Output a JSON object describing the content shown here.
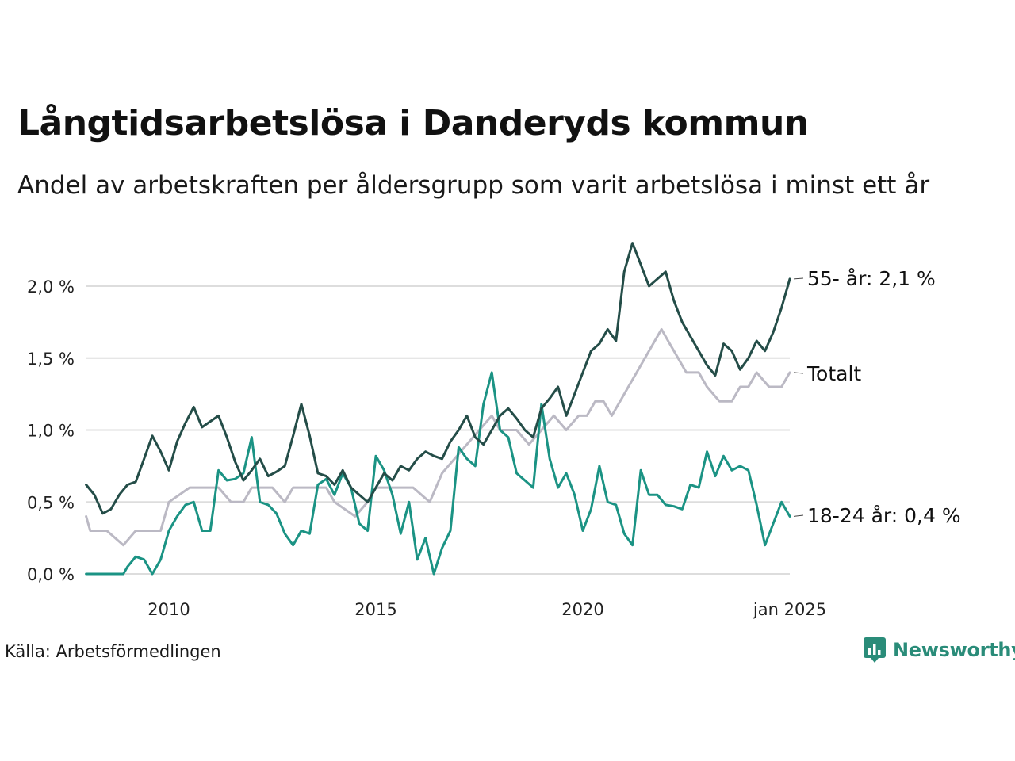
{
  "title": "Långtidsarbetslösa i Danderyds kommun",
  "subtitle": "Andel av arbetskraften per åldersgrupp som varit arbetslösa i minst ett år",
  "source": "Källa: Arbetsförmedlingen",
  "brand": "Newsworthy",
  "colors": {
    "age55": "#244d48",
    "total": "#bbb9c4",
    "age18_24": "#1b9384",
    "grid": "#dddddd",
    "brand": "#2a8c79"
  },
  "chart_data": {
    "type": "line",
    "x_axis": {
      "range": [
        2008,
        2025
      ],
      "ticks": [
        2010,
        2015,
        2020,
        2025
      ],
      "tick_labels": [
        "2010",
        "2015",
        "2020",
        "jan 2025"
      ]
    },
    "y_axis": {
      "range": [
        0,
        2.35
      ],
      "ticks": [
        0,
        0.5,
        1.0,
        1.5,
        2.0
      ],
      "tick_labels": [
        "0,0 %",
        "0,5 %",
        "1,0 %",
        "1,5 %",
        "2,0 %"
      ]
    },
    "grid": true,
    "series": [
      {
        "key": "total",
        "name": "Totalt",
        "end_label": "Totalt",
        "x": [
          2008.0,
          2008.1,
          2008.5,
          2008.9,
          2009.2,
          2009.5,
          2009.8,
          2010.0,
          2010.5,
          2010.8,
          2011.0,
          2011.2,
          2011.5,
          2011.8,
          2012.0,
          2012.5,
          2012.8,
          2013.0,
          2013.5,
          2013.8,
          2014.0,
          2014.5,
          2014.8,
          2015.0,
          2015.3,
          2015.6,
          2015.9,
          2016.3,
          2016.6,
          2016.9,
          2017.2,
          2017.5,
          2017.8,
          2018.0,
          2018.4,
          2018.7,
          2019.0,
          2019.3,
          2019.6,
          2019.9,
          2020.1,
          2020.3,
          2020.5,
          2020.7,
          2020.9,
          2021.1,
          2021.3,
          2021.5,
          2021.7,
          2021.9,
          2022.1,
          2022.3,
          2022.5,
          2022.8,
          2023.0,
          2023.3,
          2023.6,
          2023.8,
          2024.0,
          2024.2,
          2024.5,
          2024.8,
          2025.0
        ],
        "y": [
          0.4,
          0.3,
          0.3,
          0.2,
          0.3,
          0.3,
          0.3,
          0.5,
          0.6,
          0.6,
          0.6,
          0.6,
          0.5,
          0.5,
          0.6,
          0.6,
          0.5,
          0.6,
          0.6,
          0.6,
          0.5,
          0.4,
          0.5,
          0.6,
          0.6,
          0.6,
          0.6,
          0.5,
          0.7,
          0.8,
          0.9,
          1.0,
          1.1,
          1.0,
          1.0,
          0.9,
          1.0,
          1.1,
          1.0,
          1.1,
          1.1,
          1.2,
          1.2,
          1.1,
          1.2,
          1.3,
          1.4,
          1.5,
          1.6,
          1.7,
          1.6,
          1.5,
          1.4,
          1.4,
          1.3,
          1.2,
          1.2,
          1.3,
          1.3,
          1.4,
          1.3,
          1.3,
          1.4
        ]
      },
      {
        "key": "age55",
        "name": "55- år",
        "end_label": "55- år: 2,1 %",
        "x": [
          2008.0,
          2008.2,
          2008.4,
          2008.6,
          2008.8,
          2009.0,
          2009.2,
          2009.4,
          2009.6,
          2009.8,
          2010.0,
          2010.2,
          2010.4,
          2010.6,
          2010.8,
          2011.0,
          2011.2,
          2011.4,
          2011.6,
          2011.8,
          2012.0,
          2012.2,
          2012.4,
          2012.6,
          2012.8,
          2013.0,
          2013.2,
          2013.4,
          2013.6,
          2013.8,
          2014.0,
          2014.2,
          2014.4,
          2014.6,
          2014.8,
          2015.0,
          2015.2,
          2015.4,
          2015.6,
          2015.8,
          2016.0,
          2016.2,
          2016.4,
          2016.6,
          2016.8,
          2017.0,
          2017.2,
          2017.4,
          2017.6,
          2017.8,
          2018.0,
          2018.2,
          2018.4,
          2018.6,
          2018.8,
          2019.0,
          2019.2,
          2019.4,
          2019.6,
          2019.8,
          2020.0,
          2020.2,
          2020.4,
          2020.6,
          2020.8,
          2021.0,
          2021.2,
          2021.4,
          2021.6,
          2021.8,
          2022.0,
          2022.2,
          2022.4,
          2022.6,
          2022.8,
          2023.0,
          2023.2,
          2023.4,
          2023.6,
          2023.8,
          2024.0,
          2024.2,
          2024.4,
          2024.6,
          2024.8,
          2025.0
        ],
        "y": [
          0.62,
          0.55,
          0.42,
          0.45,
          0.55,
          0.62,
          0.64,
          0.8,
          0.96,
          0.85,
          0.72,
          0.92,
          1.05,
          1.16,
          1.02,
          1.06,
          1.1,
          0.95,
          0.78,
          0.65,
          0.72,
          0.8,
          0.68,
          0.71,
          0.75,
          0.96,
          1.18,
          0.96,
          0.7,
          0.68,
          0.62,
          0.72,
          0.6,
          0.55,
          0.5,
          0.6,
          0.7,
          0.65,
          0.75,
          0.72,
          0.8,
          0.85,
          0.82,
          0.8,
          0.92,
          1.0,
          1.1,
          0.95,
          0.9,
          1.0,
          1.1,
          1.15,
          1.08,
          1.0,
          0.95,
          1.15,
          1.22,
          1.3,
          1.1,
          1.25,
          1.4,
          1.55,
          1.6,
          1.7,
          1.62,
          2.1,
          2.3,
          2.15,
          2.0,
          2.05,
          2.1,
          1.9,
          1.75,
          1.65,
          1.55,
          1.45,
          1.38,
          1.6,
          1.55,
          1.42,
          1.5,
          1.62,
          1.55,
          1.68,
          1.85,
          2.05
        ]
      },
      {
        "key": "age18_24",
        "name": "18-24 år",
        "end_label": "18-24 år: 0,4 %",
        "x": [
          2008.0,
          2008.3,
          2008.5,
          2008.7,
          2008.9,
          2009.0,
          2009.2,
          2009.4,
          2009.6,
          2009.8,
          2010.0,
          2010.2,
          2010.4,
          2010.6,
          2010.8,
          2011.0,
          2011.2,
          2011.4,
          2011.6,
          2011.8,
          2012.0,
          2012.2,
          2012.4,
          2012.6,
          2012.8,
          2013.0,
          2013.2,
          2013.4,
          2013.6,
          2013.8,
          2014.0,
          2014.2,
          2014.4,
          2014.6,
          2014.8,
          2015.0,
          2015.2,
          2015.4,
          2015.6,
          2015.8,
          2016.0,
          2016.2,
          2016.4,
          2016.6,
          2016.8,
          2017.0,
          2017.2,
          2017.4,
          2017.6,
          2017.8,
          2018.0,
          2018.2,
          2018.4,
          2018.6,
          2018.8,
          2019.0,
          2019.2,
          2019.4,
          2019.6,
          2019.8,
          2020.0,
          2020.2,
          2020.4,
          2020.6,
          2020.8,
          2021.0,
          2021.2,
          2021.4,
          2021.6,
          2021.8,
          2022.0,
          2022.2,
          2022.4,
          2022.6,
          2022.8,
          2023.0,
          2023.2,
          2023.4,
          2023.6,
          2023.8,
          2024.0,
          2024.2,
          2024.4,
          2024.6,
          2024.8,
          2025.0
        ],
        "y": [
          0.0,
          0.0,
          0.0,
          0.0,
          0.0,
          0.05,
          0.12,
          0.1,
          0.0,
          0.1,
          0.3,
          0.4,
          0.48,
          0.5,
          0.3,
          0.3,
          0.72,
          0.65,
          0.66,
          0.7,
          0.95,
          0.5,
          0.48,
          0.42,
          0.28,
          0.2,
          0.3,
          0.28,
          0.62,
          0.66,
          0.55,
          0.7,
          0.6,
          0.35,
          0.3,
          0.82,
          0.72,
          0.55,
          0.28,
          0.5,
          0.1,
          0.25,
          0.0,
          0.18,
          0.3,
          0.88,
          0.8,
          0.75,
          1.18,
          1.4,
          1.0,
          0.95,
          0.7,
          0.65,
          0.6,
          1.18,
          0.8,
          0.6,
          0.7,
          0.55,
          0.3,
          0.45,
          0.75,
          0.5,
          0.48,
          0.28,
          0.2,
          0.72,
          0.55,
          0.55,
          0.48,
          0.47,
          0.45,
          0.62,
          0.6,
          0.85,
          0.68,
          0.82,
          0.72,
          0.75,
          0.72,
          0.48,
          0.2,
          0.35,
          0.5,
          0.4
        ]
      }
    ]
  }
}
